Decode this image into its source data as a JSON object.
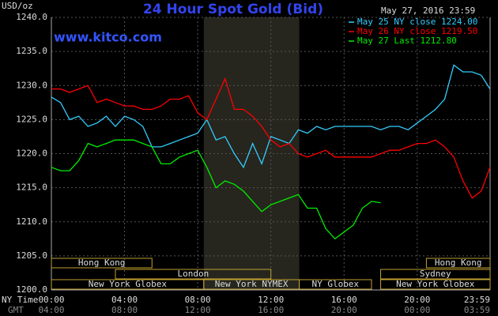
{
  "chart_data": {
    "type": "line",
    "title": "24 Hour Spot Gold (Bid)",
    "subtitle": "www.kitco.com",
    "timestamp": "May 27, 2016 23:59",
    "y_label": "USD/oz",
    "x_label": "NY Time",
    "x2_label": "GMT",
    "ylim": [
      1200,
      1240
    ],
    "yticks": [
      {
        "value": 1200,
        "label": "1200.0"
      },
      {
        "value": 1205,
        "label": "1205.0"
      },
      {
        "value": 1210,
        "label": "1210.0"
      },
      {
        "value": 1215,
        "label": "1215.0"
      },
      {
        "value": 1220,
        "label": "1220.0"
      },
      {
        "value": 1225,
        "label": "1225.0"
      },
      {
        "value": 1230,
        "label": "1230.0"
      },
      {
        "value": 1235,
        "label": "1235.0"
      },
      {
        "value": 1240,
        "label": "1240.0"
      }
    ],
    "xlim": [
      0,
      23.983
    ],
    "xticks": [
      {
        "value": 0,
        "label": "00:00"
      },
      {
        "value": 4,
        "label": "04:00"
      },
      {
        "value": 8,
        "label": "08:00"
      },
      {
        "value": 12,
        "label": "12:00"
      },
      {
        "value": 16,
        "label": "16:00"
      },
      {
        "value": 20,
        "label": "20:00"
      },
      {
        "value": 23.983,
        "label": "23:59"
      }
    ],
    "x2ticks": [
      {
        "value": 0,
        "label": "04:00"
      },
      {
        "value": 4,
        "label": "08:00"
      },
      {
        "value": 8,
        "label": "12:00"
      },
      {
        "value": 12,
        "label": "16:00"
      },
      {
        "value": 16,
        "label": "20:00"
      },
      {
        "value": 20,
        "label": "00:00"
      },
      {
        "value": 23.983,
        "label": "03:59"
      }
    ],
    "grid": true,
    "shaded_range": [
      8.33,
      13.55
    ],
    "x": [
      0,
      0.5,
      1,
      1.5,
      2,
      2.5,
      3,
      3.5,
      4,
      4.5,
      5,
      5.5,
      6,
      6.5,
      7,
      7.5,
      8,
      8.5,
      9,
      9.5,
      10,
      10.5,
      11,
      11.5,
      12,
      12.5,
      13,
      13.5,
      14,
      14.5,
      15,
      15.5,
      16,
      16.5,
      17,
      17.5,
      18,
      18.5,
      19,
      19.5,
      20,
      20.5,
      21,
      21.5,
      22,
      22.5,
      23,
      23.5,
      23.98
    ],
    "series": [
      {
        "name": "May 25 NY close 1224.00",
        "color": "#33ccff",
        "values": [
          1228.3,
          1227.5,
          1225,
          1225.5,
          1224,
          1224.5,
          1225.5,
          1224,
          1225.5,
          1225,
          1224,
          1221,
          1221,
          1221.5,
          1222,
          1222.5,
          1223,
          1225,
          1222,
          1222.5,
          1220,
          1218,
          1221.5,
          1218.5,
          1222.5,
          1222,
          1221.5,
          1223.5,
          1223,
          1224,
          1223.5,
          1224,
          1224,
          1224,
          1224,
          1224,
          1223.5,
          1224,
          1224,
          1223.5,
          1224.5,
          1225.5,
          1226.5,
          1228,
          1233,
          1232,
          1232,
          1231.5,
          1229.5
        ]
      },
      {
        "name": "May 26 NY close 1219.50",
        "color": "#ff0000",
        "values": [
          1229.5,
          1229.5,
          1229,
          1229.5,
          1230,
          1227.5,
          1228,
          1227.5,
          1227,
          1227,
          1226.5,
          1226.5,
          1227,
          1228,
          1228,
          1228.5,
          1226,
          1225,
          1228,
          1231,
          1226.5,
          1226.5,
          1225.5,
          1224,
          1222,
          1221,
          1221.5,
          1220,
          1219.5,
          1220,
          1220.5,
          1219.5,
          1219.5,
          1219.5,
          1219.5,
          1219.5,
          1220,
          1220.5,
          1220.5,
          1221,
          1221.5,
          1221.5,
          1222,
          1221,
          1219.5,
          1216,
          1213.5,
          1214.5,
          1218
        ]
      },
      {
        "name": "May 27 Last 1212.80",
        "color": "#00ee00",
        "values": [
          1218,
          1217.5,
          1217.5,
          1219,
          1221.5,
          1221,
          1221.5,
          1222,
          1222,
          1222,
          1221.5,
          1221,
          1218.5,
          1218.5,
          1219.5,
          1220,
          1220.5,
          1218,
          1215,
          1216,
          1215.5,
          1214.5,
          1213,
          1211.5,
          1212.5,
          1213,
          1213.5,
          1214,
          1212,
          1212,
          1209,
          1207.5,
          1208.5,
          1209.5,
          1212,
          1213,
          1212.8,
          null,
          null,
          null,
          null,
          null,
          null,
          null,
          null,
          null,
          null,
          null,
          null
        ]
      }
    ],
    "sessions": [
      {
        "label": "Hong Kong",
        "start": 0,
        "end": 5.5
      },
      {
        "label": "Hong Kong",
        "start": 20.5,
        "end": 23.983
      },
      {
        "label": "London",
        "start": 3.5,
        "end": 12
      },
      {
        "label": "Sydney",
        "start": 18,
        "end": 23.983
      },
      {
        "label": "New York Globex",
        "start": 0,
        "end": 8.33
      },
      {
        "label": "New York NYMEX",
        "start": 8.33,
        "end": 13.55
      },
      {
        "label": "NY Globex",
        "start": 13.55,
        "end": 17.5
      },
      {
        "label": "New York Globex",
        "start": 18,
        "end": 23.983
      }
    ]
  }
}
